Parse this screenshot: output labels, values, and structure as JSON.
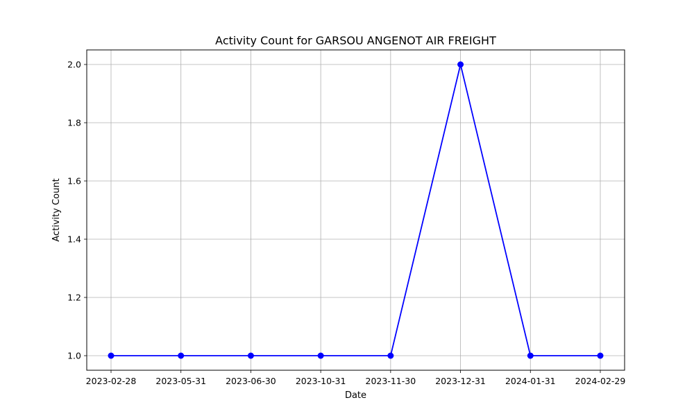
{
  "chart_data": {
    "type": "line",
    "title": "Activity Count for GARSOU ANGENOT AIR FREIGHT",
    "xlabel": "Date",
    "ylabel": "Activity Count",
    "categories": [
      "2023-02-28",
      "2023-05-31",
      "2023-06-30",
      "2023-10-31",
      "2023-11-30",
      "2023-12-31",
      "2024-01-31",
      "2024-02-29"
    ],
    "series": [
      {
        "values": [
          1,
          1,
          1,
          1,
          1,
          2,
          1,
          1
        ]
      }
    ],
    "ylim": [
      0.95,
      2.05
    ],
    "yticks": [
      1.0,
      1.2,
      1.4,
      1.6,
      1.8,
      2.0
    ],
    "ytick_labels": [
      "1.0",
      "1.2",
      "1.4",
      "1.6",
      "1.8",
      "2.0"
    ],
    "grid": true,
    "line_color": "#0000ff",
    "marker": "circle"
  }
}
